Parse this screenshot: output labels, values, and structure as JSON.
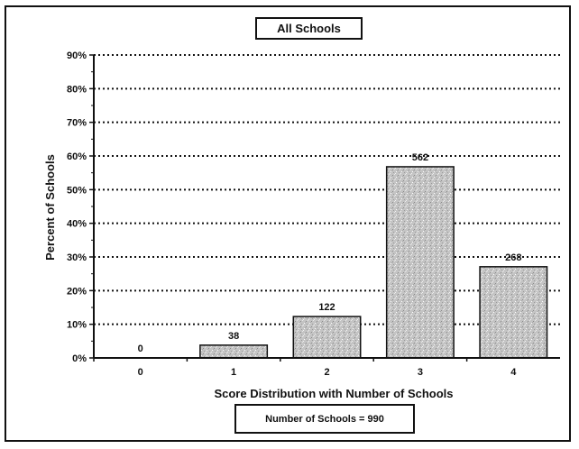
{
  "chart_data": {
    "type": "bar",
    "title": "All Schools",
    "xlabel": "Score Distribution with Number of Schools",
    "ylabel": "Percent of Schools",
    "categories": [
      "0",
      "1",
      "2",
      "3",
      "4"
    ],
    "values": [
      0,
      3.8,
      12.3,
      56.8,
      27.1
    ],
    "data_labels": [
      "0",
      "38",
      "122",
      "562",
      "268"
    ],
    "ylim": [
      0,
      90
    ],
    "yticks": [
      0,
      10,
      20,
      30,
      40,
      50,
      60,
      70,
      80,
      90
    ],
    "ytick_labels": [
      "0%",
      "10%",
      "20%",
      "30%",
      "40%",
      "50%",
      "60%",
      "70%",
      "80%",
      "90%"
    ],
    "grid": "horizontal dotted",
    "bar_color": "#bdbdbd",
    "bar_edge_color": "#111111",
    "footer_note": "Number of Schools = 990"
  }
}
